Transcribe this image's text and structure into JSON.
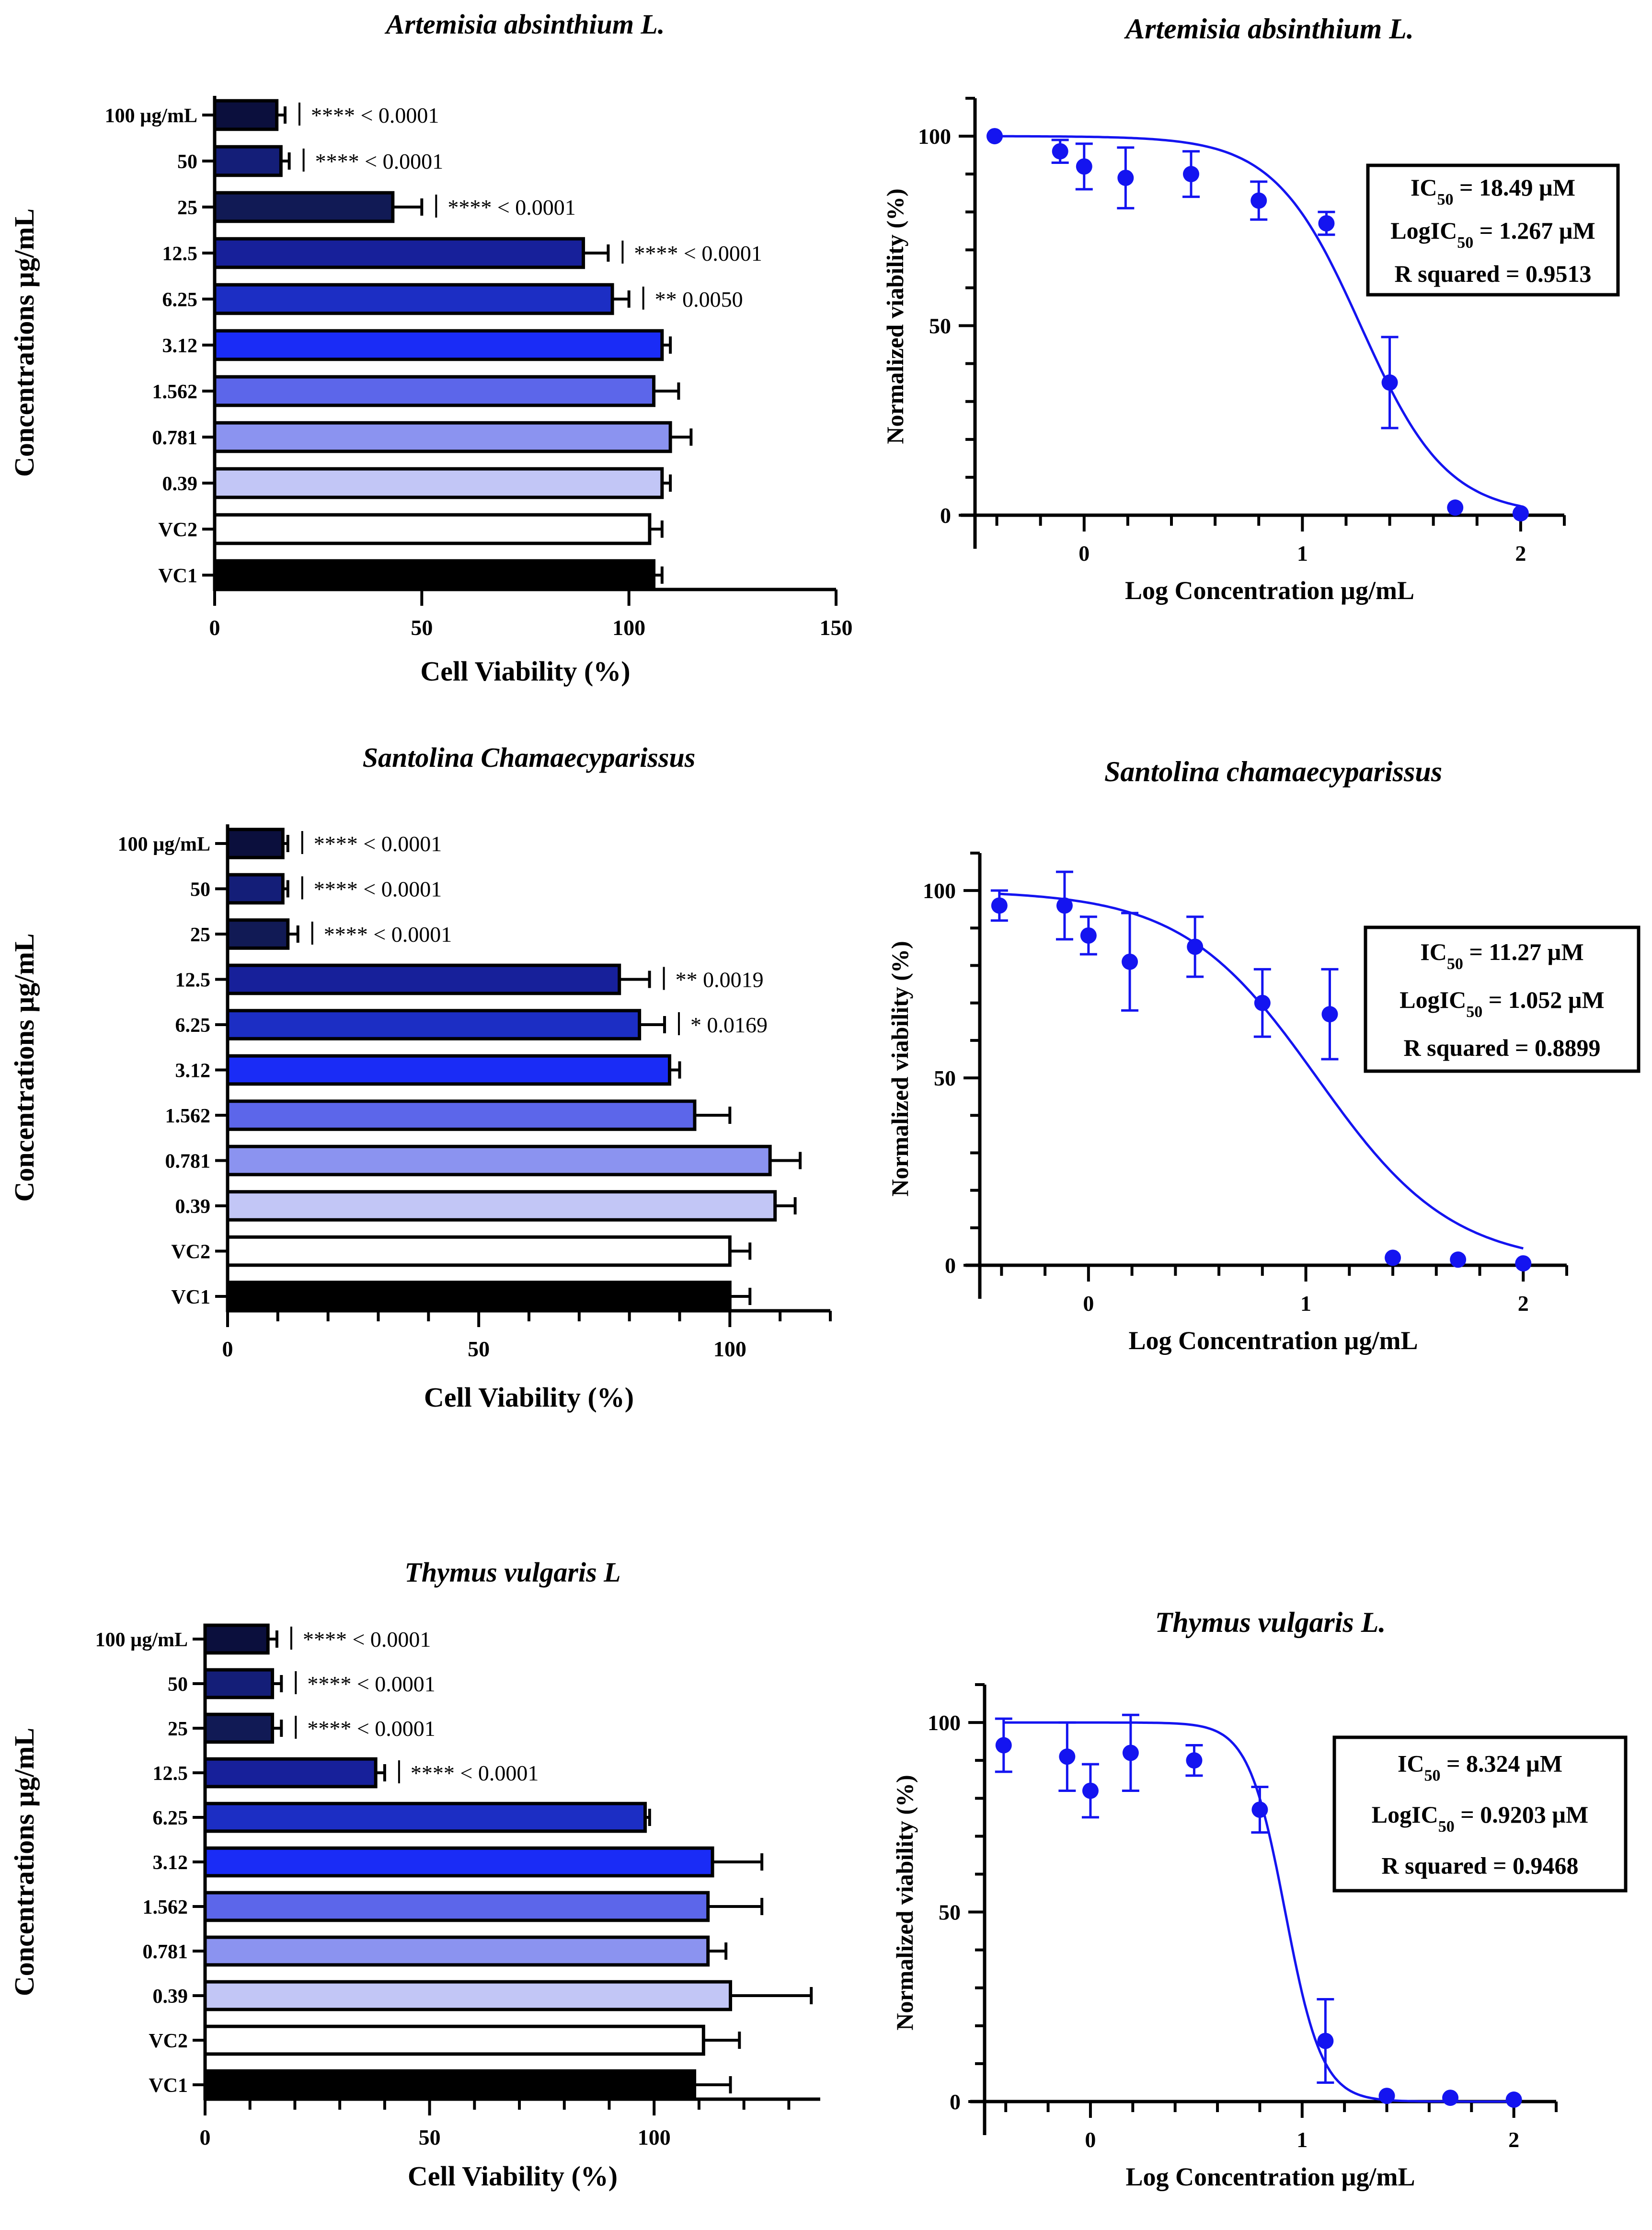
{
  "chart_data": [
    {
      "type": "bar",
      "orientation": "horizontal",
      "title": "Artemisia absinthium L.",
      "xlabel": "Cell Viability (%)",
      "ylabel": "Concentrations µg/mL",
      "xlim": [
        0,
        150
      ],
      "xticks": [
        "0",
        "50",
        "100",
        "150"
      ],
      "categories": [
        "100 µg/mL",
        "50",
        "25",
        "12.5",
        "6.25",
        "3.12",
        "1.562",
        "0.781",
        "0.39",
        "VC2",
        "VC1"
      ],
      "values": [
        15,
        16,
        43,
        89,
        96,
        108,
        106,
        110,
        108,
        105,
        106
      ],
      "errors": [
        2,
        2,
        7,
        6,
        4,
        2,
        6,
        5,
        2,
        3,
        2
      ],
      "colors": [
        "#0b0f3d",
        "#141e78",
        "#111a55",
        "#17209a",
        "#1c2ec4",
        "#1a2cf6",
        "#5c66ea",
        "#8b93f0",
        "#c2c6f6",
        "#ffffff",
        "#000000"
      ],
      "annotations": [
        "**** < 0.0001",
        "**** < 0.0001",
        "**** < 0.0001",
        "**** < 0.0001",
        "** 0.0050",
        "",
        "",
        "",
        "",
        "",
        ""
      ]
    },
    {
      "type": "line",
      "title": "Artemisia absinthium L.",
      "xlabel": "Log Concentration µg/mL",
      "ylabel": "Normalized viability (%)",
      "xlim": [
        -0.5,
        2.2
      ],
      "ylim": [
        0,
        110
      ],
      "xticks": [
        "0",
        "1",
        "2"
      ],
      "yticks": [
        "0",
        "50",
        "100"
      ],
      "x": [
        -0.41,
        -0.11,
        0,
        0.19,
        0.49,
        0.8,
        1.11,
        1.4,
        1.7,
        2.0
      ],
      "y": [
        100,
        96,
        92,
        89,
        90,
        83,
        77,
        35,
        2,
        0.5
      ],
      "errors": [
        0,
        3,
        6,
        8,
        6,
        5,
        3,
        12,
        0,
        0
      ],
      "fit": {
        "ic50_log": 1.267,
        "hill": -2.2,
        "top": 100,
        "bottom": 0
      },
      "box": {
        "ic50_pre": "IC",
        "ic50_sub": "50",
        "ic50_post": " = 18.49 µM",
        "logic50_pre": "LogIC",
        "logic50_sub": "50",
        "logic50_post": " = 1.267 µM",
        "rsq": "R squared = 0.9513"
      }
    },
    {
      "type": "bar",
      "orientation": "horizontal",
      "title": "Santolina Chamaecyparissus",
      "xlabel": "Cell Viability (%)",
      "ylabel": "Concentrations µg/mL",
      "xlim": [
        0,
        120
      ],
      "xticks": [
        "0",
        "50",
        "100"
      ],
      "categories": [
        "100 µg/mL",
        "50",
        "25",
        "12.5",
        "6.25",
        "3.12",
        "1.562",
        "0.781",
        "0.39",
        "VC2",
        "VC1"
      ],
      "values": [
        11,
        11,
        12,
        78,
        82,
        88,
        93,
        108,
        109,
        100,
        100
      ],
      "errors": [
        1,
        1,
        2,
        6,
        5,
        2,
        7,
        6,
        4,
        4,
        4
      ],
      "colors": [
        "#0b0f3d",
        "#141e78",
        "#111a55",
        "#17209a",
        "#1c2ec4",
        "#1a2cf6",
        "#5c66ea",
        "#8b93f0",
        "#c2c6f6",
        "#ffffff",
        "#000000"
      ],
      "annotations": [
        "**** < 0.0001",
        "**** < 0.0001",
        "**** < 0.0001",
        "** 0.0019",
        "* 0.0169",
        "",
        "",
        "",
        "",
        "",
        ""
      ]
    },
    {
      "type": "line",
      "title": "Santolina chamaecyparissus",
      "xlabel": "Log Concentration µg/mL",
      "ylabel": "Normalized viability (%)",
      "xlim": [
        -0.5,
        2.2
      ],
      "ylim": [
        0,
        110
      ],
      "xticks": [
        "0",
        "1",
        "2"
      ],
      "yticks": [
        "0",
        "50",
        "100"
      ],
      "x": [
        -0.41,
        -0.11,
        0,
        0.19,
        0.49,
        0.8,
        1.11,
        1.4,
        1.7,
        2.0
      ],
      "y": [
        96,
        96,
        88,
        81,
        85,
        70,
        67,
        2,
        1.5,
        0.5
      ],
      "errors": [
        4,
        9,
        5,
        13,
        8,
        9,
        12,
        0,
        0,
        0
      ],
      "fit": {
        "ic50_log": 1.052,
        "hill": -1.4,
        "top": 100,
        "bottom": 0
      },
      "box": {
        "ic50_pre": "IC",
        "ic50_sub": "50",
        "ic50_post": " = 11.27 µM",
        "logic50_pre": "LogIC",
        "logic50_sub": "50",
        "logic50_post": " = 1.052 µM",
        "rsq": "R squared = 0.8899"
      }
    },
    {
      "type": "bar",
      "orientation": "horizontal",
      "title": "Thymus vulgaris L",
      "xlabel": "Cell Viability (%)",
      "ylabel": "Concentrations µg/mL",
      "xlim": [
        0,
        137
      ],
      "xticks": [
        "0",
        "50",
        "100"
      ],
      "categories": [
        "100 µg/mL",
        "50",
        "25",
        "12.5",
        "6.25",
        "3.12",
        "1.562",
        "0.781",
        "0.39",
        "VC2",
        "VC1"
      ],
      "values": [
        14,
        15,
        15,
        38,
        98,
        113,
        112,
        112,
        117,
        111,
        109
      ],
      "errors": [
        2,
        2,
        2,
        2,
        1,
        11,
        12,
        4,
        18,
        8,
        8
      ],
      "colors": [
        "#0b0f3d",
        "#141e78",
        "#111a55",
        "#17209a",
        "#1c2ec4",
        "#1a2cf6",
        "#5c66ea",
        "#8b93f0",
        "#c2c6f6",
        "#ffffff",
        "#000000"
      ],
      "annotations": [
        "**** < 0.0001",
        "**** < 0.0001",
        "**** < 0.0001",
        "**** < 0.0001",
        "",
        "",
        "",
        "",
        "",
        "",
        ""
      ]
    },
    {
      "type": "line",
      "title": "Thymus vulgaris L.",
      "xlabel": "Log Concentration µg/mL",
      "ylabel": "Normalized viability (%)",
      "xlim": [
        -0.5,
        2.2
      ],
      "ylim": [
        0,
        110
      ],
      "xticks": [
        "0",
        "1",
        "2"
      ],
      "yticks": [
        "0",
        "50",
        "100"
      ],
      "x": [
        -0.41,
        -0.11,
        0,
        0.19,
        0.49,
        0.8,
        1.11,
        1.4,
        1.7,
        2.0
      ],
      "y": [
        94,
        91,
        82,
        92,
        90,
        77,
        16,
        1.5,
        1,
        0.5
      ],
      "errors": [
        7,
        9,
        7,
        10,
        4,
        6,
        11,
        0,
        0,
        0
      ],
      "fit": {
        "ic50_log": 0.9203,
        "hill": -5.0,
        "top": 100,
        "bottom": 0
      },
      "box": {
        "ic50_pre": "IC",
        "ic50_sub": "50",
        "ic50_post": " = 8.324 µM",
        "logic50_pre": "LogIC",
        "logic50_sub": "50",
        "logic50_post": " = 0.9203 µM",
        "rsq": "R squared = 0.9468"
      }
    }
  ]
}
